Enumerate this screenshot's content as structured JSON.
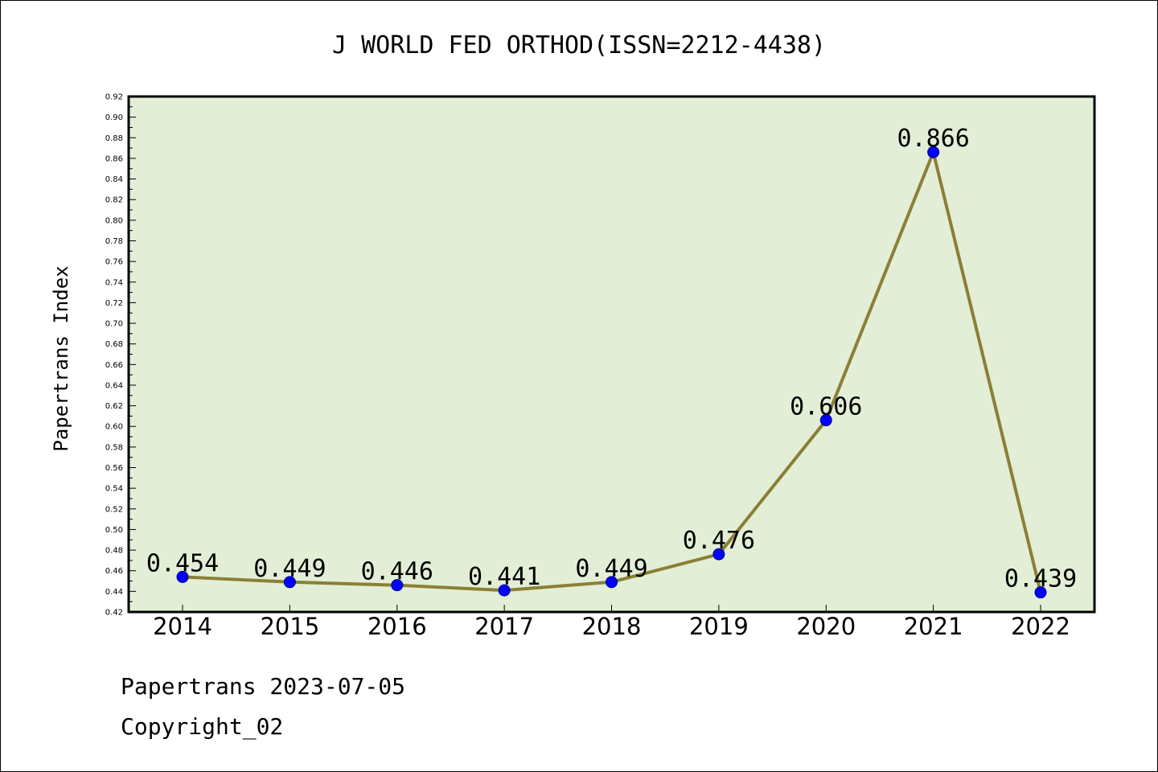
{
  "chart_data": {
    "type": "line",
    "title": "J WORLD FED ORTHOD(ISSN=2212-4438)",
    "xlabel": "",
    "ylabel": "Papertrans Index",
    "categories": [
      "2014",
      "2015",
      "2016",
      "2017",
      "2018",
      "2019",
      "2020",
      "2021",
      "2022"
    ],
    "series": [
      {
        "values": [
          0.454,
          0.449,
          0.446,
          0.441,
          0.449,
          0.476,
          0.606,
          0.866,
          0.439
        ],
        "data_labels": [
          "0.454",
          "0.449",
          "0.446",
          "0.441",
          "0.449",
          "0.476",
          "0.606",
          "0.866",
          "0.439"
        ]
      }
    ],
    "ylim": [
      0.42,
      0.92
    ],
    "y_major_step": 0.02,
    "y_minor_step": 0.01,
    "y_tick_labels": [
      "0.42",
      "0.44",
      "0.46",
      "0.48",
      "0.50",
      "0.52",
      "0.54",
      "0.56",
      "0.58",
      "0.60",
      "0.62",
      "0.64",
      "0.66",
      "0.68",
      "0.70",
      "0.72",
      "0.74",
      "0.76",
      "0.78",
      "0.80",
      "0.82",
      "0.84",
      "0.86",
      "0.88",
      "0.90",
      "0.92"
    ],
    "grid": false,
    "colors": {
      "plot_background": "#e2efd6",
      "line": "#8b7f37",
      "marker": "#0000ff",
      "marker_edge": "#00008b"
    }
  },
  "footer": {
    "line1": "Papertrans 2023-07-05",
    "line2": "Copyright_02"
  }
}
